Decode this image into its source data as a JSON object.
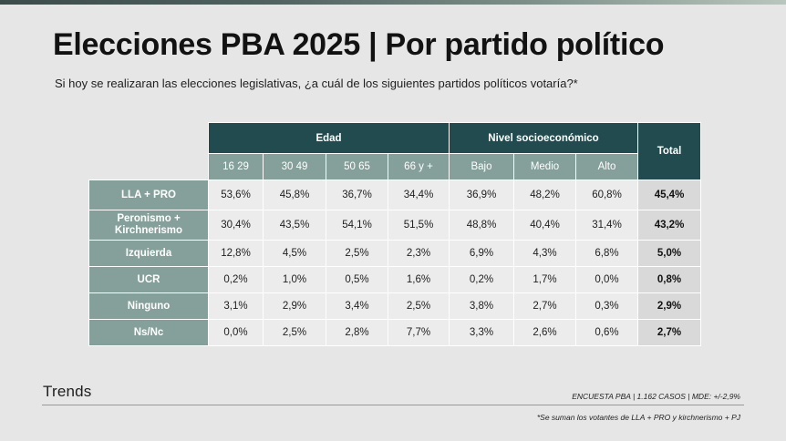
{
  "header": {
    "title": "Elecciones PBA 2025 | Por partido político",
    "subtitle": "Si hoy se realizaran las elecciones legislativas, ¿a cuál de los siguientes partidos políticos votaría?*"
  },
  "chart_data": {
    "type": "table",
    "column_groups": [
      {
        "label": "Edad",
        "columns": [
          "16 29",
          "30 49",
          "50 65",
          "66 y +"
        ]
      },
      {
        "label": "Nivel socioeconómico",
        "columns": [
          "Bajo",
          "Medio",
          "Alto"
        ]
      }
    ],
    "total_label": "Total",
    "rows": [
      {
        "label": "LLA + PRO",
        "values": [
          "53,6%",
          "45,8%",
          "36,7%",
          "34,4%",
          "36,9%",
          "48,2%",
          "60,8%"
        ],
        "total": "45,4%"
      },
      {
        "label": "Peronismo + Kirchnerismo",
        "values": [
          "30,4%",
          "43,5%",
          "54,1%",
          "51,5%",
          "48,8%",
          "40,4%",
          "31,4%"
        ],
        "total": "43,2%"
      },
      {
        "label": "Izquierda",
        "values": [
          "12,8%",
          "4,5%",
          "2,5%",
          "2,3%",
          "6,9%",
          "4,3%",
          "6,8%"
        ],
        "total": "5,0%"
      },
      {
        "label": "UCR",
        "values": [
          "0,2%",
          "1,0%",
          "0,5%",
          "1,6%",
          "0,2%",
          "1,7%",
          "0,0%"
        ],
        "total": "0,8%"
      },
      {
        "label": "Ninguno",
        "values": [
          "3,1%",
          "2,9%",
          "3,4%",
          "2,5%",
          "3,8%",
          "2,7%",
          "0,3%"
        ],
        "total": "2,9%"
      },
      {
        "label": "Ns/Nc",
        "values": [
          "0,0%",
          "2,5%",
          "2,8%",
          "7,7%",
          "3,3%",
          "2,6%",
          "0,6%"
        ],
        "total": "2,7%"
      }
    ]
  },
  "footer": {
    "logo": "Trends",
    "source": "ENCUESTA PBA | 1.162 CASOS | MDE: +/-2,9%",
    "note": "*Se suman los votantes de LLA + PRO y kirchnerismo + PJ"
  },
  "colors": {
    "header_dark": "#214b4f",
    "header_light": "#85a09a",
    "cell_bg": "#ececec",
    "total_bg": "#d9d9d9",
    "page_bg": "#e6e6e6"
  }
}
